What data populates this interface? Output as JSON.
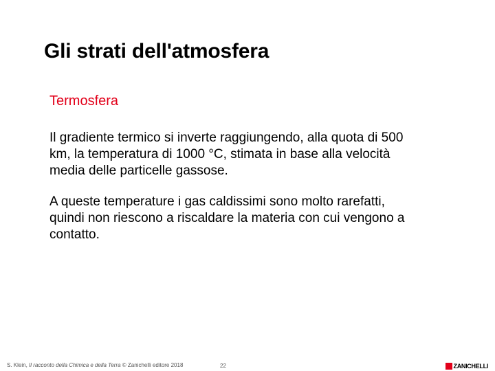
{
  "slide": {
    "title": "Gli strati dell'atmosfera",
    "subtitle": "Termosfera",
    "paragraph1": "Il gradiente termico si inverte raggiungendo, alla quota di 500 km, la temperatura di 1000 °C, stimata in base alla velocità media delle particelle gassose.",
    "paragraph2": "A queste temperature i gas caldissimi sono molto rarefatti, quindi non riescono a riscaldare la materia con cui vengono a contatto."
  },
  "footer": {
    "author": "S. Klein, ",
    "book": "Il racconto della Chimica e della Terra",
    "copyright": " © Zanichelli editore 2018",
    "page": "22",
    "publisher": "ZANICHELLI"
  },
  "colors": {
    "accent": "#e2001a",
    "text": "#000000",
    "footer_text": "#555555",
    "background": "#ffffff"
  },
  "typography": {
    "title_fontsize": 30,
    "subtitle_fontsize": 20,
    "body_fontsize": 19,
    "footer_fontsize": 8
  }
}
